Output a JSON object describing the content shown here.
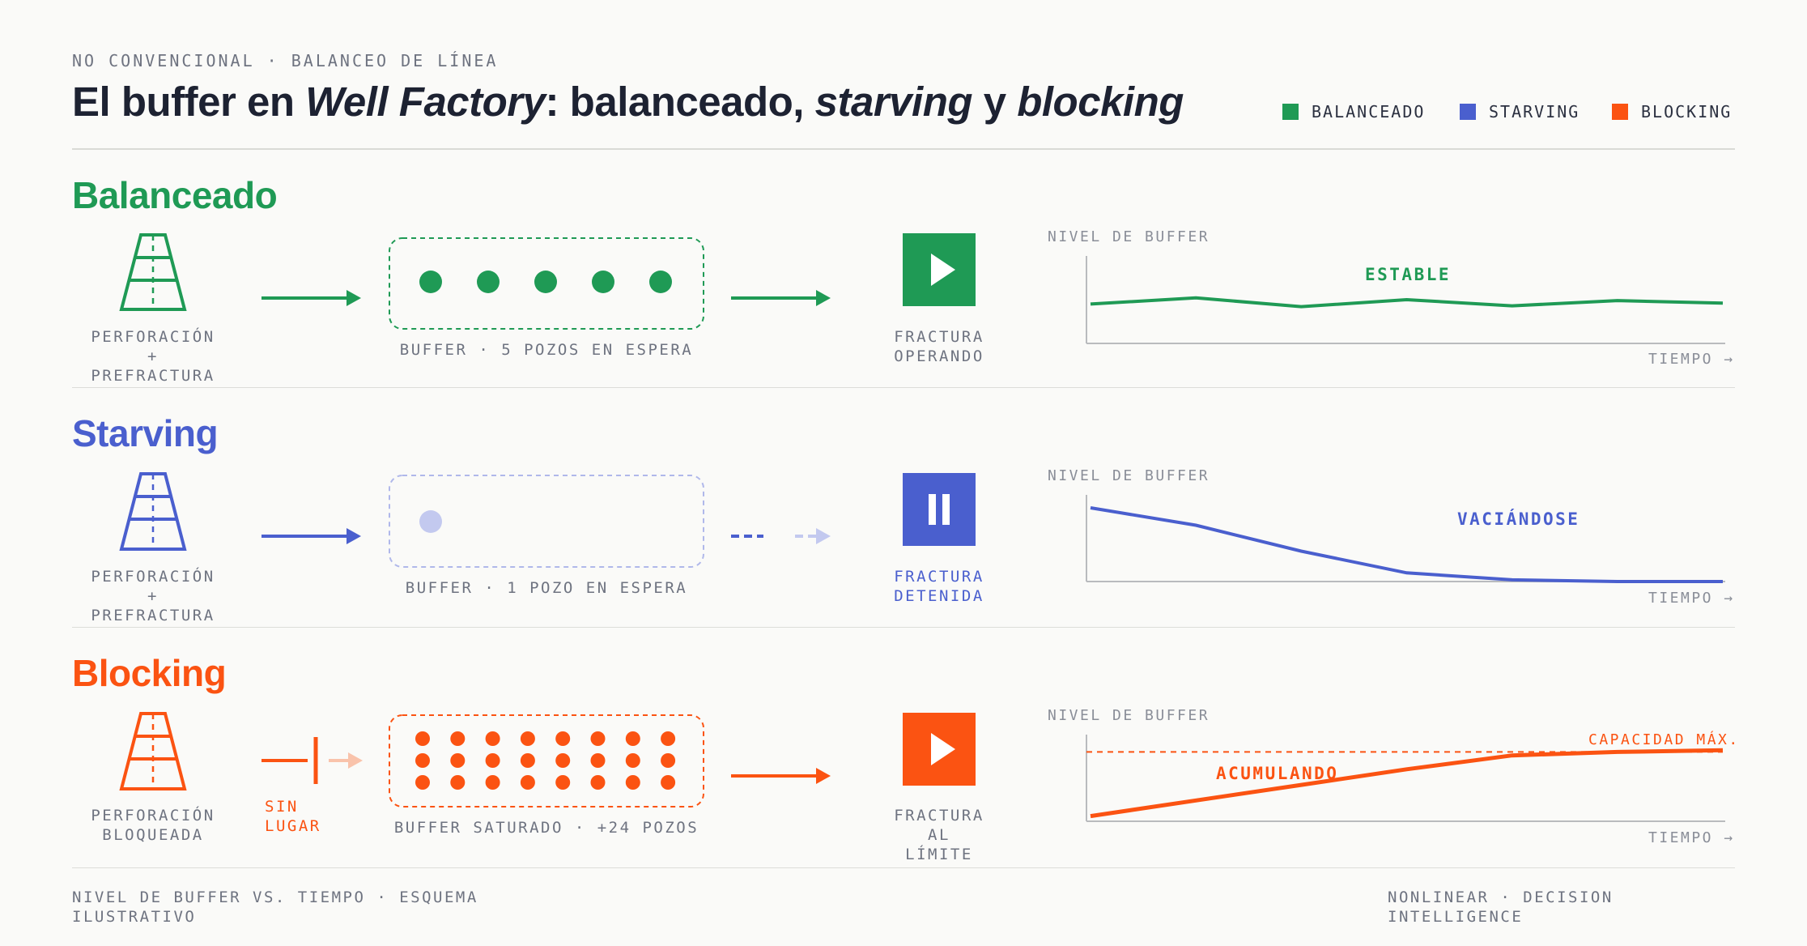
{
  "header": {
    "eyebrow": "NO CONVENCIONAL · BALANCEO DE LÍNEA",
    "title_parts": [
      "El buffer en ",
      "Well Factory",
      ": balanceado, ",
      "starving",
      " y ",
      "blocking"
    ]
  },
  "legend": [
    {
      "label": "BALANCEADO",
      "color": "#1f9a55"
    },
    {
      "label": "STARVING",
      "color": "#4a5fce"
    },
    {
      "label": "BLOCKING",
      "color": "#fb5312"
    }
  ],
  "colors": {
    "balanceado": "#1f9a55",
    "starving": "#4a5fce",
    "starving_light": "#c3c9ef",
    "blocking": "#fb5312",
    "blocking_light": "#f9c3ab"
  },
  "rows": [
    {
      "title": "Balanceado",
      "source_label": [
        "PERFORACIÓN",
        "+",
        "PREFRACTURA"
      ],
      "buffer_label": "BUFFER · 5 POZOS EN ESPERA",
      "buffer_count": 5,
      "frac_icon": "play-icon",
      "frac_label": [
        "FRACTURA",
        "OPERANDO"
      ],
      "chart": {
        "ylabel": "NIVEL DE BUFFER",
        "xlabel": "TIEMPO →",
        "trend_label": "ESTABLE"
      }
    },
    {
      "title": "Starving",
      "source_label": [
        "PERFORACIÓN",
        "+",
        "PREFRACTURA"
      ],
      "buffer_label": "BUFFER · 1 POZO EN ESPERA",
      "buffer_count": 1,
      "frac_icon": "pause-icon",
      "frac_label": [
        "FRACTURA",
        "DETENIDA"
      ],
      "chart": {
        "ylabel": "NIVEL DE BUFFER",
        "xlabel": "TIEMPO →",
        "trend_label": "VACIÁNDOSE"
      }
    },
    {
      "title": "Blocking",
      "source_label": [
        "PERFORACIÓN",
        "BLOQUEADA"
      ],
      "block_label": [
        "SIN",
        "LUGAR"
      ],
      "buffer_label": "BUFFER SATURADO · +24 POZOS",
      "buffer_count": 24,
      "frac_icon": "play-icon",
      "frac_label": [
        "FRACTURA",
        "AL",
        "LÍMITE"
      ],
      "chart": {
        "ylabel": "NIVEL DE BUFFER",
        "xlabel": "TIEMPO →",
        "trend_label": "ACUMULANDO",
        "cap_label": "CAPACIDAD MÁX."
      }
    }
  ],
  "chart_data": [
    {
      "type": "line",
      "title": "ESTABLE",
      "ylabel": "NIVEL DE BUFFER",
      "xlabel": "TIEMPO →",
      "x": [
        0,
        1,
        2,
        3,
        4,
        5,
        6
      ],
      "values": [
        0.45,
        0.52,
        0.42,
        0.5,
        0.43,
        0.49,
        0.46
      ],
      "ylim": [
        0,
        1
      ]
    },
    {
      "type": "line",
      "title": "VACIÁNDOSE",
      "ylabel": "NIVEL DE BUFFER",
      "xlabel": "TIEMPO →",
      "x": [
        0,
        1,
        2,
        3,
        4,
        5,
        6
      ],
      "values": [
        0.85,
        0.65,
        0.35,
        0.1,
        0.02,
        0.0,
        0.0
      ],
      "ylim": [
        0,
        1
      ]
    },
    {
      "type": "line",
      "title": "ACUMULANDO",
      "ylabel": "NIVEL DE BUFFER",
      "xlabel": "TIEMPO →",
      "x": [
        0,
        1,
        2,
        3,
        4,
        5,
        6
      ],
      "values": [
        0.06,
        0.24,
        0.42,
        0.6,
        0.76,
        0.8,
        0.82
      ],
      "capacity": 0.8,
      "ylim": [
        0,
        1
      ]
    }
  ],
  "footer": {
    "left": [
      "NIVEL DE BUFFER VS. TIEMPO · ESQUEMA",
      "ILUSTRATIVO"
    ],
    "right": [
      "NONLINEAR · DECISION",
      "INTELLIGENCE"
    ]
  }
}
